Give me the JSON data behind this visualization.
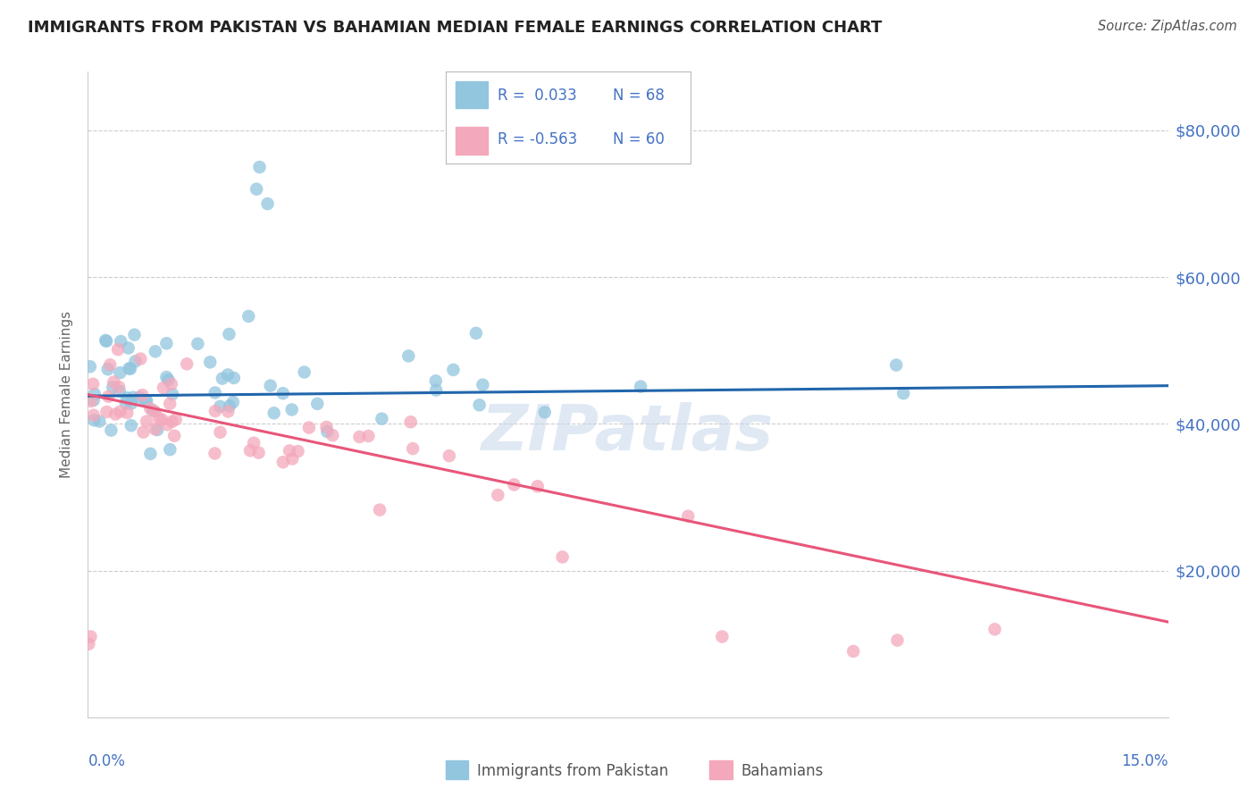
{
  "title": "IMMIGRANTS FROM PAKISTAN VS BAHAMIAN MEDIAN FEMALE EARNINGS CORRELATION CHART",
  "source": "Source: ZipAtlas.com",
  "ylabel": "Median Female Earnings",
  "yticks": [
    0,
    20000,
    40000,
    60000,
    80000
  ],
  "ytick_labels": [
    "",
    "$20,000",
    "$40,000",
    "$60,000",
    "$80,000"
  ],
  "xlim": [
    0.0,
    0.15
  ],
  "ylim": [
    0,
    88000
  ],
  "blue_color": "#92C5DE",
  "pink_color": "#F4A8BB",
  "blue_line_color": "#2166AC",
  "pink_line_color": "#E8567A",
  "axis_color": "#4472C4",
  "grid_color": "#CCCCCC",
  "watermark": "ZIPatlas",
  "title_color": "#222222",
  "source_color": "#555555",
  "blue_line_y0": 43800,
  "blue_line_y1": 45200,
  "pink_line_y0": 44000,
  "pink_line_y1": 13000,
  "pak_seed": 7,
  "bah_seed": 13
}
